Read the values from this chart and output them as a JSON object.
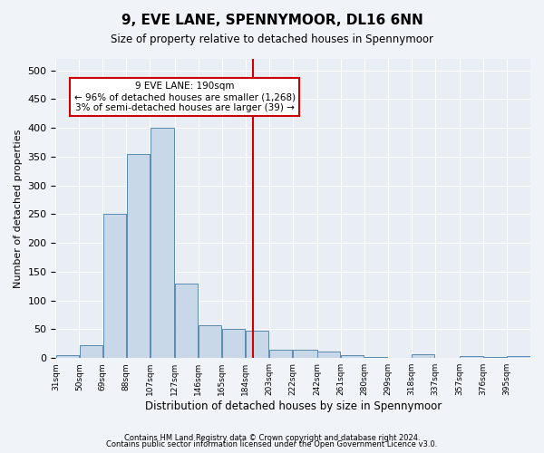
{
  "title": "9, EVE LANE, SPENNYMOOR, DL16 6NN",
  "subtitle": "Size of property relative to detached houses in Spennymoor",
  "xlabel": "Distribution of detached houses by size in Spennymoor",
  "ylabel": "Number of detached properties",
  "bar_color": "#c8d8e8",
  "bar_edge_color": "#5a8ab0",
  "vline_x": 190,
  "vline_color": "#cc0000",
  "annotation_title": "9 EVE LANE: 190sqm",
  "annotation_line1": "← 96% of detached houses are smaller (1,268)",
  "annotation_line2": "3% of semi-detached houses are larger (39) →",
  "annotation_box_color": "#cc0000",
  "bins": [
    31,
    50,
    69,
    88,
    107,
    127,
    146,
    165,
    184,
    203,
    222,
    242,
    261,
    280,
    299,
    318,
    337,
    357,
    376,
    395,
    414
  ],
  "counts": [
    5,
    22,
    250,
    355,
    400,
    130,
    57,
    50,
    48,
    15,
    14,
    12,
    5,
    2,
    0,
    6,
    0,
    4,
    2,
    3
  ],
  "ylim": [
    0,
    520
  ],
  "yticks": [
    0,
    50,
    100,
    150,
    200,
    250,
    300,
    350,
    400,
    450,
    500
  ],
  "footer1": "Contains HM Land Registry data © Crown copyright and database right 2024.",
  "footer2": "Contains public sector information licensed under the Open Government Licence v3.0.",
  "bg_color": "#f0f4f8",
  "plot_bg_color": "#e8eef4"
}
